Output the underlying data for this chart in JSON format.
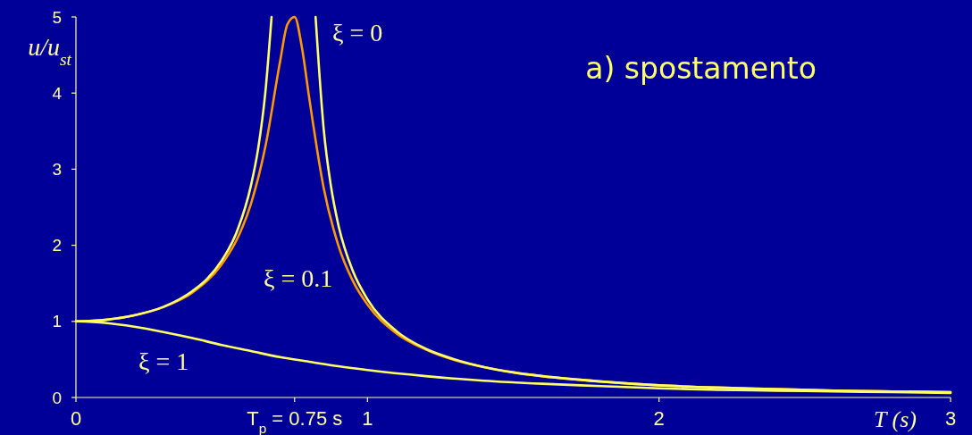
{
  "chart_data": {
    "type": "line",
    "title": "a) spostamento",
    "xlabel": "T (s)",
    "ylabel": "u/u$_{st}$",
    "xlim": [
      0,
      3
    ],
    "ylim": [
      0,
      5
    ],
    "xticks": [
      0,
      {
        "value": 0.75,
        "label": "T$_{p}$ = 0.75 s"
      },
      1,
      2,
      3
    ],
    "yticks": [
      0,
      1,
      2,
      3,
      4,
      5
    ],
    "series": [
      {
        "name": "ξ = 0.1",
        "color": "#ff9900",
        "x": [
          0,
          0.1,
          0.2,
          0.3,
          0.4,
          0.5,
          0.55,
          0.6,
          0.65,
          0.7,
          0.725,
          0.75,
          0.775,
          0.8,
          0.85,
          0.9,
          0.95,
          1.0,
          1.1,
          1.2,
          1.3,
          1.4,
          1.5,
          1.6,
          1.8,
          2.0,
          2.2,
          2.4,
          2.6,
          2.8,
          3.0
        ],
        "values": [
          1,
          1.02,
          1.08,
          1.19,
          1.38,
          1.75,
          2.06,
          2.54,
          3.3,
          4.41,
          4.9,
          5,
          4.6,
          3.94,
          2.75,
          2.0,
          1.53,
          1.22,
          0.84,
          0.63,
          0.49,
          0.4,
          0.33,
          0.28,
          0.21,
          0.16,
          0.13,
          0.11,
          0.09,
          0.08,
          0.07
        ]
      },
      {
        "name": "ξ = 0",
        "color": "#ffff66",
        "x": [
          0,
          0.1,
          0.2,
          0.3,
          0.4,
          0.45,
          0.5,
          0.55,
          0.6,
          0.625,
          0.65,
          0.671,
          0.75,
          0.822,
          0.85,
          0.875,
          0.9,
          0.95,
          1.0,
          1.1,
          1.2,
          1.3,
          1.4,
          1.5,
          1.6,
          1.8,
          2.0,
          2.2,
          2.4,
          2.6,
          2.8,
          3.0
        ],
        "values": [
          1,
          1.02,
          1.08,
          1.19,
          1.4,
          1.56,
          1.8,
          2.16,
          2.78,
          3.27,
          4.02,
          5,
          null,
          5,
          3.52,
          2.77,
          2.27,
          1.66,
          1.29,
          0.87,
          0.64,
          0.5,
          0.4,
          0.33,
          0.28,
          0.21,
          0.16,
          0.13,
          0.11,
          0.09,
          0.08,
          0.07
        ]
      },
      {
        "name": "ξ = 1",
        "color": "#ffff66",
        "x": [
          0,
          0.1,
          0.2,
          0.3,
          0.4,
          0.5,
          0.6,
          0.7,
          0.8,
          0.9,
          1.0,
          1.2,
          1.4,
          1.6,
          1.8,
          2.0,
          2.2,
          2.4,
          2.6,
          2.8,
          3.0
        ],
        "values": [
          1,
          0.98,
          0.93,
          0.86,
          0.78,
          0.69,
          0.61,
          0.53,
          0.47,
          0.41,
          0.36,
          0.28,
          0.22,
          0.18,
          0.15,
          0.12,
          0.1,
          0.09,
          0.08,
          0.07,
          0.06
        ]
      }
    ]
  }
}
